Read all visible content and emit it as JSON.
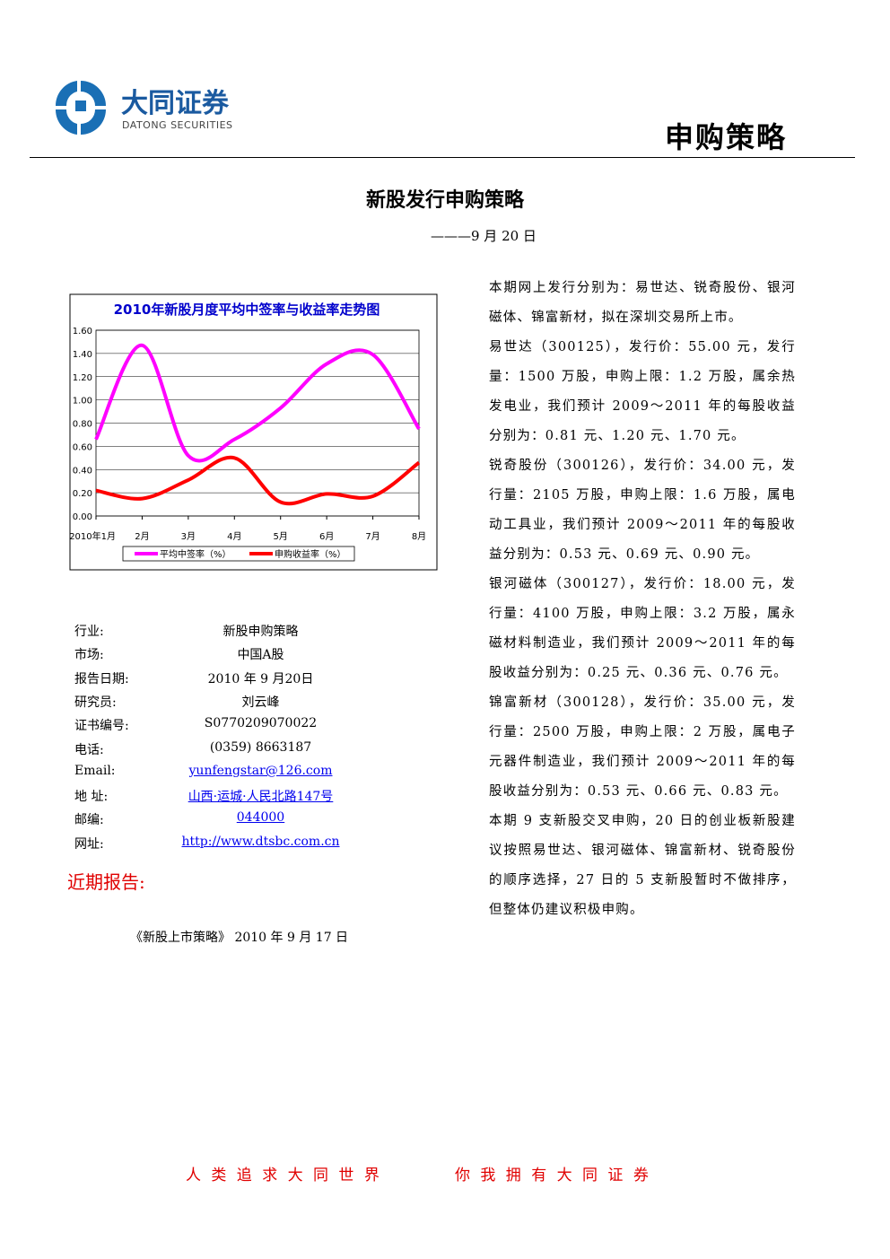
{
  "header": {
    "logo_cn": "大同证券",
    "logo_en": "DATONG SECURITIES",
    "section": "申购策略"
  },
  "title": "新股发行申购策略",
  "date": "———9 月 20 日",
  "chart_data": {
    "type": "line",
    "title": "2010年新股月度平均中签率与收益率走势图",
    "categories": [
      "2010年1月",
      "2月",
      "3月",
      "4月",
      "5月",
      "6月",
      "7月",
      "8月"
    ],
    "series": [
      {
        "name": "平均中签率（%）",
        "color": "#ff00ff",
        "values": [
          0.66,
          1.47,
          0.52,
          0.66,
          0.93,
          1.31,
          1.39,
          0.75
        ]
      },
      {
        "name": "申购收益率（%）",
        "color": "#ff0000",
        "values": [
          0.22,
          0.15,
          0.31,
          0.5,
          0.12,
          0.19,
          0.17,
          0.46
        ]
      }
    ],
    "ylim": [
      0,
      1.6
    ],
    "yticks": [
      {
        "value": 0,
        "label": "0.00"
      },
      {
        "value": 0.2,
        "label": "0.20"
      },
      {
        "value": 0.4,
        "label": "0.40"
      },
      {
        "value": 0.6,
        "label": "0.60"
      },
      {
        "value": 0.8,
        "label": "0.80"
      },
      {
        "value": 1,
        "label": "1.00"
      },
      {
        "value": 1.2,
        "label": "1.20"
      },
      {
        "value": 1.4,
        "label": "1.40"
      },
      {
        "value": 1.6,
        "label": "1.60"
      }
    ],
    "grid": true,
    "legend": "bottom"
  },
  "info": [
    [
      "行业:",
      "新股申购策略"
    ],
    [
      "市场:",
      "中国A股"
    ],
    [
      "报告日期:",
      "2010 年 9 月20日"
    ],
    [
      "研究员:",
      "刘云峰"
    ],
    [
      "证书编号:",
      "S0770209070022"
    ],
    [
      "电话:",
      "(0359) 8663187"
    ],
    [
      "Email:",
      "yunfengstar@126.com"
    ],
    [
      "地 址:",
      "山西·运城·人民北路147号"
    ],
    [
      "邮编:",
      "044000"
    ],
    [
      "网址:",
      "http://www.dtsbc.com.cn"
    ]
  ],
  "recent": {
    "heading": "近期报告:",
    "items": [
      "《新股上市策略》 2010 年 9 月 17 日"
    ]
  },
  "body": [
    "本期网上发行分别为：易世达、锐奇股份、银河磁体、锦富新材，拟在深圳交易所上市。",
    "易世达（300125），发行价：55.00 元，发行量：1500 万股，申购上限：1.2 万股，属余热发电业，我们预计 2009～2011 年的每股收益分别为：0.81 元、1.20 元、1.70 元。",
    "锐奇股份（300126），发行价：34.00 元，发行量：2105 万股，申购上限：1.6 万股，属电动工具业，我们预计 2009～2011 年的每股收益分别为：0.53 元、0.69 元、0.90 元。",
    "银河磁体（300127），发行价：18.00 元，发行量：4100 万股，申购上限：3.2 万股，属永磁材料制造业，我们预计 2009～2011 年的每股收益分别为：0.25 元、0.36 元、0.76 元。",
    "锦富新材（300128），发行价：35.00 元，发行量：2500 万股，申购上限：2 万股，属电子元器件制造业，我们预计 2009～2011 年的每股收益分别为：0.53 元、0.66 元、0.83 元。",
    "本期 9 支新股交叉申购，20 日的创业板新股建议按照易世达、银河磁体、锦富新材、锐奇股份的顺序选择，27 日的 5 支新股暂时不做排序，但整体仍建议积极申购。"
  ],
  "footer": [
    "人 类 追 求 大 同 世 界",
    "你 我 拥 有 大 同 证 券"
  ]
}
